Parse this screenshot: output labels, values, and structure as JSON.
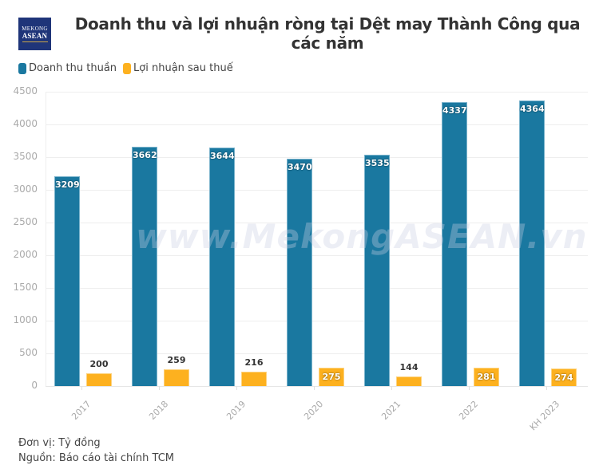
{
  "header": {
    "logo_line1": "MEKONG",
    "logo_line2": "ASEAN",
    "title": "Doanh thu và lợi nhuận ròng tại Dệt may Thành Công qua các năm"
  },
  "legend": [
    {
      "label": "Doanh thu thuần",
      "color": "#1a78a0"
    },
    {
      "label": "Lợi nhuận sau thuế",
      "color": "#fdb11f"
    }
  ],
  "watermark": "www.MekongASEAN.vn",
  "footer": {
    "unit": "Đơn vị: Tỷ đồng",
    "source": "Nguồn: Báo cáo tài chính TCM"
  },
  "chart_data": {
    "type": "bar",
    "title": "Doanh thu và lợi nhuận ròng tại Dệt may Thành Công qua các năm",
    "xlabel": "",
    "ylabel": "",
    "ylim": [
      0,
      4500
    ],
    "yticks": [
      0,
      500,
      1000,
      1500,
      2000,
      2500,
      3000,
      3500,
      4000,
      4500
    ],
    "grid": true,
    "legend_position": "top-left",
    "categories": [
      "2017",
      "2018",
      "2019",
      "2020",
      "2021",
      "2022",
      "KH 2023"
    ],
    "series": [
      {
        "name": "Doanh thu thuần",
        "color": "#1a78a0",
        "values": [
          3209,
          3662,
          3644,
          3470,
          3535,
          4337,
          4364
        ]
      },
      {
        "name": "Lợi nhuận sau thuế",
        "color": "#fdb11f",
        "values": [
          200,
          259,
          216,
          275,
          144,
          281,
          274
        ]
      }
    ],
    "profit_label_inside": [
      false,
      false,
      false,
      true,
      false,
      true,
      true
    ],
    "unit": "Tỷ đồng"
  }
}
